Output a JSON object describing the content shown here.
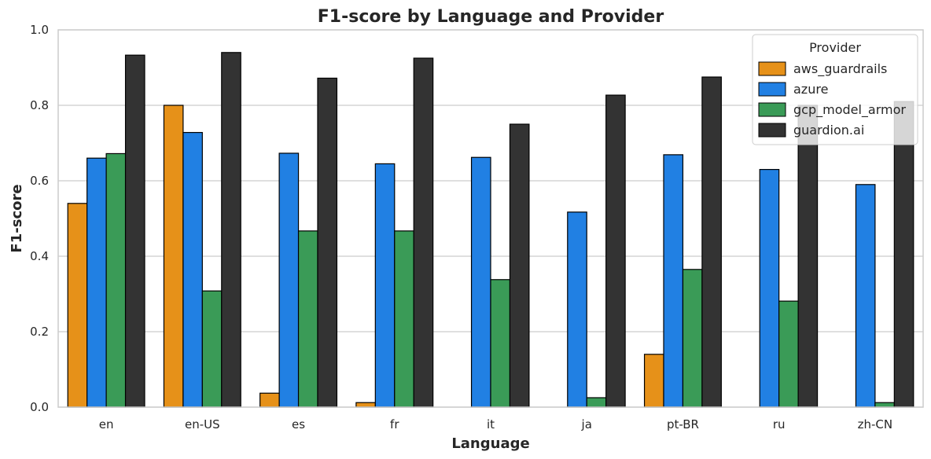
{
  "chart_data": {
    "type": "bar",
    "title": "F1-score by Language and Provider",
    "xlabel": "Language",
    "ylabel": "F1-score",
    "ylim": [
      0,
      1
    ],
    "yticks": [
      "0.0",
      "0.2",
      "0.4",
      "0.6",
      "0.8",
      "1.0"
    ],
    "ytick_values": [
      0,
      0.2,
      0.4,
      0.6,
      0.8,
      1.0
    ],
    "grid": true,
    "legend": {
      "title": "Provider",
      "position": "top-right"
    },
    "categories": [
      "en",
      "en-US",
      "es",
      "fr",
      "it",
      "ja",
      "pt-BR",
      "ru",
      "zh-CN"
    ],
    "series": [
      {
        "name": "aws_guardrails",
        "color": "#E69119",
        "values": [
          0.54,
          0.8,
          0.037,
          0.012,
          0,
          0,
          0.14,
          0,
          0
        ]
      },
      {
        "name": "azure",
        "color": "#2180E3",
        "values": [
          0.66,
          0.728,
          0.673,
          0.645,
          0.662,
          0.517,
          0.669,
          0.63,
          0.59
        ]
      },
      {
        "name": "gcp_model_armor",
        "color": "#3A9B57",
        "values": [
          0.672,
          0.308,
          0.467,
          0.467,
          0.338,
          0.025,
          0.365,
          0.281,
          0.012
        ]
      },
      {
        "name": "guardion.ai",
        "color": "#333333",
        "values": [
          0.933,
          0.94,
          0.872,
          0.925,
          0.75,
          0.827,
          0.875,
          0.8,
          0.81
        ]
      }
    ]
  }
}
